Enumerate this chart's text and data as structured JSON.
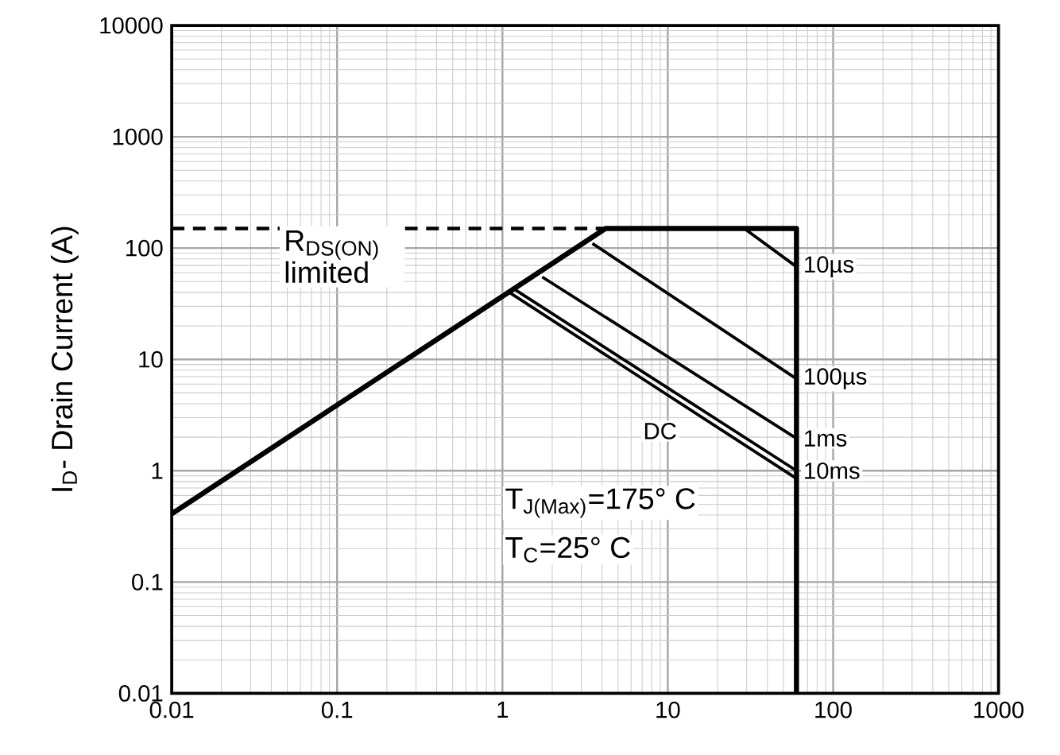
{
  "chart_data": {
    "type": "line",
    "ylabel": "I$_{D}$- Drain Current (A)",
    "log": "xy",
    "grid": true,
    "xlim": [
      0.01,
      1000
    ],
    "ylim": [
      0.01,
      10000
    ],
    "xticks": [
      0.01,
      0.1,
      1,
      10,
      100,
      1000
    ],
    "yticks": [
      0.01,
      0.1,
      1,
      10,
      100,
      1000,
      10000
    ],
    "series": [
      {
        "color": "#000000",
        "x": [
          0.01,
          4.2,
          60,
          60
        ],
        "values": [
          0.41,
          150,
          150,
          0.01
        ]
      },
      {
        "color": "#000000",
        "line_style": "dashed",
        "x": [
          0.01,
          4.2
        ],
        "values": [
          150,
          150
        ]
      },
      {
        "name": "10µs",
        "color": "#000000",
        "x": [
          29,
          60
        ],
        "values": [
          150,
          68
        ]
      },
      {
        "name": "100µs",
        "color": "#000000",
        "x": [
          3.5,
          60
        ],
        "values": [
          110,
          6.7
        ]
      },
      {
        "name": "1ms",
        "color": "#000000",
        "x": [
          1.74,
          60
        ],
        "values": [
          55,
          1.95
        ]
      },
      {
        "name": "10ms",
        "color": "#000000",
        "x": [
          1.2,
          60
        ],
        "values": [
          42,
          1.0
        ]
      },
      {
        "name": "DC",
        "color": "#000000",
        "x": [
          1.1,
          60
        ],
        "values": [
          40,
          0.85
        ]
      }
    ],
    "annotations": [
      "R$_{DS(ON)}$ limited",
      "T$_{J(Max)}$=175° C",
      "T$_{C}$=25° C"
    ]
  }
}
